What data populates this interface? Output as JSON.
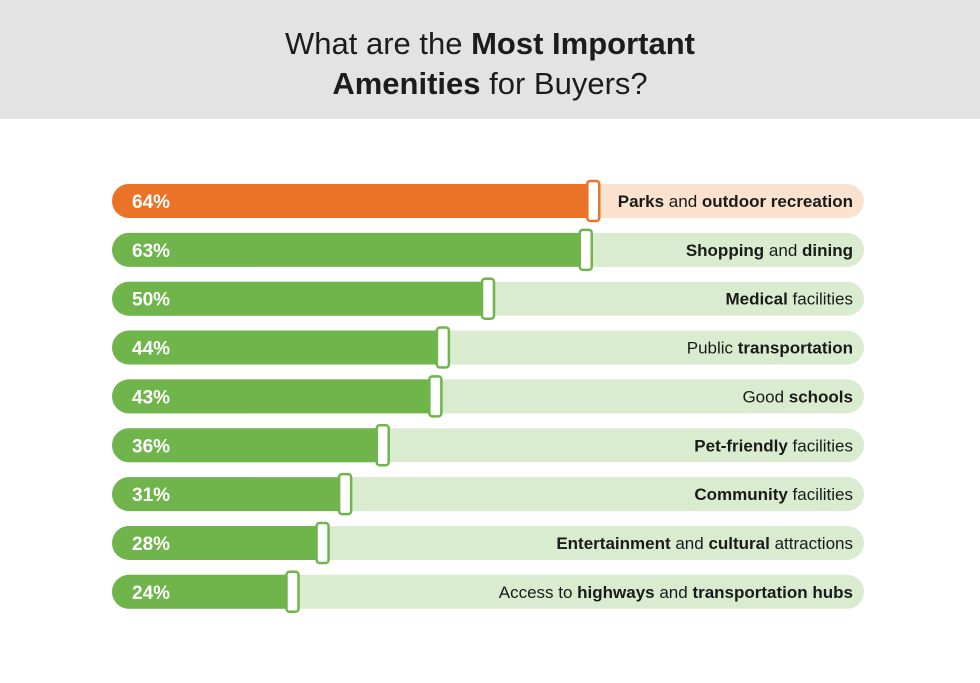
{
  "title": {
    "line1_prefix": "What are the ",
    "line1_bold": "Most Important",
    "line2_bold": "Amenities",
    "line2_suffix": " for Buyers?"
  },
  "colors": {
    "header_bg": "#e3e3e3",
    "highlight_fill": "#ea7327",
    "highlight_track": "#fbe2cf",
    "bar_fill": "#6fb54b",
    "bar_track": "#d9ecd0"
  },
  "chart_data": {
    "type": "bar",
    "orientation": "horizontal",
    "title": "What are the Most Important Amenities for Buyers?",
    "xlim": [
      0,
      100
    ],
    "unit": "%",
    "highlight_index": 0,
    "categories": [
      "Parks and outdoor recreation",
      "Shopping and dining",
      "Medical facilities",
      "Public transportation",
      "Good schools",
      "Pet-friendly facilities",
      "Community facilities",
      "Entertainment and cultural attractions",
      "Access to highways and transportation hubs"
    ],
    "values": [
      64,
      63,
      50,
      44,
      43,
      36,
      31,
      28,
      24
    ],
    "value_labels": [
      "64%",
      "63%",
      "50%",
      "44%",
      "43%",
      "36%",
      "31%",
      "28%",
      "24%"
    ],
    "label_parts": [
      [
        {
          "t": "Parks",
          "b": true
        },
        {
          "t": " and ",
          "b": false
        },
        {
          "t": "outdoor recreation",
          "b": true
        }
      ],
      [
        {
          "t": "Shopping",
          "b": true
        },
        {
          "t": " and ",
          "b": false
        },
        {
          "t": "dining",
          "b": true
        }
      ],
      [
        {
          "t": "Medical",
          "b": true
        },
        {
          "t": " facilities",
          "b": false
        }
      ],
      [
        {
          "t": "Public ",
          "b": false
        },
        {
          "t": "transportation",
          "b": true
        }
      ],
      [
        {
          "t": "Good ",
          "b": false
        },
        {
          "t": "schools",
          "b": true
        }
      ],
      [
        {
          "t": "Pet-friendly",
          "b": true
        },
        {
          "t": " facilities",
          "b": false
        }
      ],
      [
        {
          "t": "Community",
          "b": true
        },
        {
          "t": " facilities",
          "b": false
        }
      ],
      [
        {
          "t": "Entertainment",
          "b": true
        },
        {
          "t": " and ",
          "b": false
        },
        {
          "t": "cultural",
          "b": true
        },
        {
          "t": " attractions",
          "b": false
        }
      ],
      [
        {
          "t": "Access to ",
          "b": false
        },
        {
          "t": "highways",
          "b": true
        },
        {
          "t": " and ",
          "b": false
        },
        {
          "t": "transportation hubs",
          "b": true
        }
      ]
    ]
  }
}
